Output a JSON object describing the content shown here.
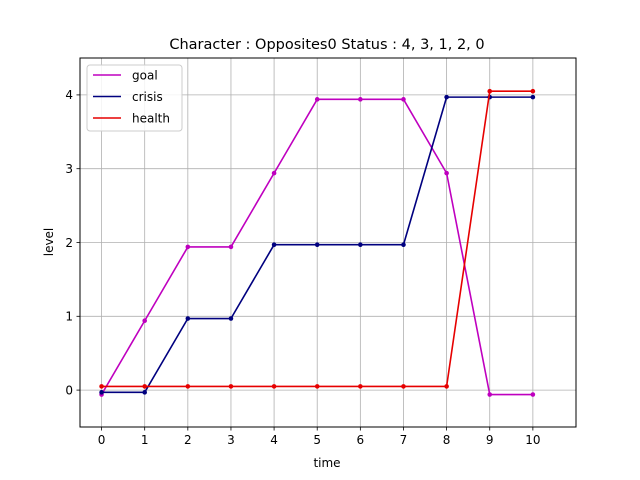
{
  "chart_data": {
    "type": "line",
    "title": "Character : Opposites0 Status : 4, 3, 1, 2, 0",
    "xlabel": "time",
    "ylabel": "level",
    "xlim": [
      -0.5,
      11
    ],
    "ylim": [
      -0.5,
      4.5
    ],
    "xticks": [
      "0",
      "1",
      "2",
      "3",
      "4",
      "5",
      "6",
      "7",
      "8",
      "9",
      "10"
    ],
    "yticks": [
      "0",
      "1",
      "2",
      "3",
      "4"
    ],
    "grid": true,
    "legend_position": "top-left",
    "x": [
      0,
      1,
      2,
      3,
      4,
      5,
      6,
      7,
      8,
      9,
      10
    ],
    "series": [
      {
        "name": "goal",
        "color": "#bf00bf",
        "values": [
          -0.06,
          0.94,
          1.94,
          1.94,
          2.94,
          3.94,
          3.94,
          3.94,
          2.94,
          -0.06,
          -0.06
        ]
      },
      {
        "name": "crisis",
        "color": "#00007f",
        "values": [
          -0.03,
          -0.03,
          0.97,
          0.97,
          1.97,
          1.97,
          1.97,
          1.97,
          3.97,
          3.97,
          3.97
        ]
      },
      {
        "name": "health",
        "color": "#e60000",
        "values": [
          0.05,
          0.05,
          0.05,
          0.05,
          0.05,
          0.05,
          0.05,
          0.05,
          0.05,
          4.05,
          4.05
        ]
      }
    ]
  }
}
